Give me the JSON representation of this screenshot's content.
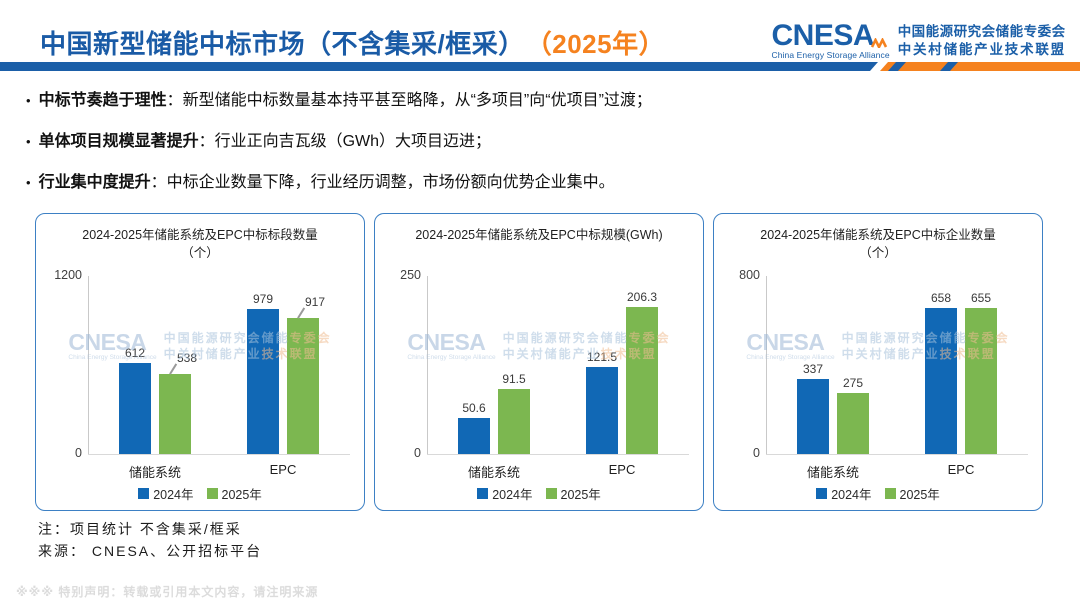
{
  "header": {
    "title": "中国新型储能中标市场（不含集采/框采）",
    "title_year": "（2025年）",
    "logo": {
      "name": "CNESA",
      "subtitle": "China Energy Storage Alliance",
      "org_line1": "中国能源研究会储能专委会",
      "org_line2": "中关村储能产业技术联盟"
    }
  },
  "bullets": [
    {
      "lead": "中标节奏趋于理性",
      "text": "：新型储能中标数量基本持平甚至略降，从“多项目”向“优项目”过渡；"
    },
    {
      "lead": "单体项目规模显著提升",
      "text": "：行业正向吉瓦级（GWh）大项目迈进；"
    },
    {
      "lead": "行业集中度提升",
      "text": "：中标企业数量下降，行业经历调整，市场份额向优势企业集中。"
    }
  ],
  "colors": {
    "title_blue": "#1a5ba6",
    "accent_orange": "#f5821f",
    "bar_blue": "#1168b5",
    "bar_green": "#7cb750",
    "card_border": "#3d80c4"
  },
  "chart_data": [
    {
      "type": "bar",
      "title": "2024-2025年储能系统及EPC中标标段数量（个）",
      "categories": [
        "储能系统",
        "EPC"
      ],
      "series": [
        {
          "name": "2024年",
          "values": [
            612,
            979
          ]
        },
        {
          "name": "2025年",
          "values": [
            538,
            917
          ]
        }
      ],
      "ylim": [
        0,
        1200
      ],
      "legend_position": "bottom",
      "grid": false,
      "green_label_callout": true
    },
    {
      "type": "bar",
      "title": "2024-2025年储能系统及EPC中标规模(GWh)",
      "categories": [
        "储能系统",
        "EPC"
      ],
      "series": [
        {
          "name": "2024年",
          "values": [
            50.6,
            121.5
          ]
        },
        {
          "name": "2025年",
          "values": [
            91.5,
            206.3
          ]
        }
      ],
      "ylim": [
        0,
        250
      ],
      "legend_position": "bottom",
      "grid": false,
      "green_label_callout": false
    },
    {
      "type": "bar",
      "title": "2024-2025年储能系统及EPC中标企业数量（个）",
      "categories": [
        "储能系统",
        "EPC"
      ],
      "series": [
        {
          "name": "2024年",
          "values": [
            337,
            658
          ]
        },
        {
          "name": "2025年",
          "values": [
            275,
            655
          ]
        }
      ],
      "ylim": [
        0,
        800
      ],
      "legend_position": "bottom",
      "grid": false,
      "green_label_callout": false
    }
  ],
  "notes": [
    "注：项目统计 不含集采/框采",
    "来源： CNESA、公开招标平台"
  ],
  "disclaimer": "※※※ 特别声明：转载或引用本文内容，请注明来源"
}
